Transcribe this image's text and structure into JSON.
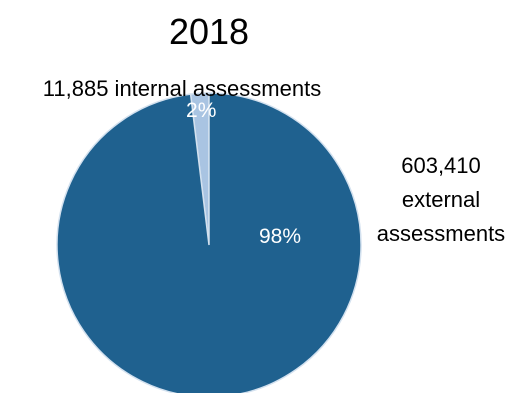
{
  "chart_data": {
    "type": "pie",
    "title": "2018",
    "categories": [
      "internal assessments",
      "external assessments"
    ],
    "values": [
      11885,
      603410
    ],
    "percent_labels": [
      "2%",
      "98%"
    ],
    "slice_labels": [
      [
        "11,885 internal assessments"
      ],
      [
        "603,410",
        "external",
        "assessments"
      ]
    ],
    "colors": [
      "#a9c4e2",
      "#1f618f"
    ],
    "edge_color": "#d3e1ef",
    "legend": "none"
  }
}
